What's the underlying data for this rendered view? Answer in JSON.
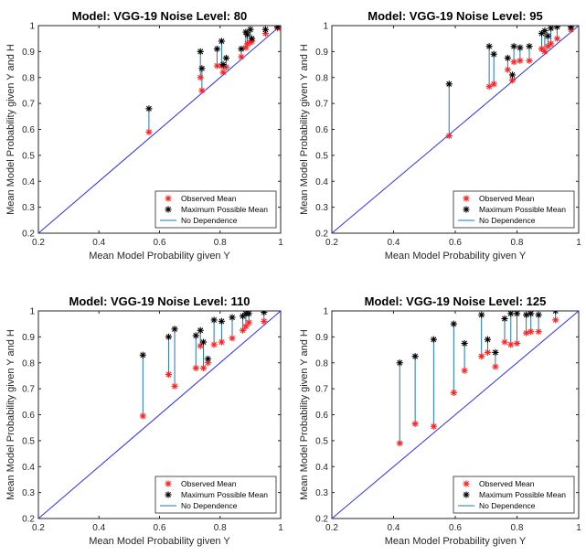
{
  "chart_data": [
    {
      "type": "scatter",
      "title": "Model: VGG-19   Noise Level: 80",
      "xlabel": "Mean Model Probability given Y",
      "ylabel": "Mean Model Probability given Y and H",
      "xlim": [
        0.2,
        1
      ],
      "ylim": [
        0.2,
        1
      ],
      "xticks": [
        "0.2",
        "0.4",
        "0.6",
        "0.8",
        "1"
      ],
      "yticks": [
        "0.2",
        "0.3",
        "0.4",
        "0.5",
        "0.6",
        "0.7",
        "0.8",
        "0.9",
        "1"
      ],
      "legend": {
        "position": "bottom-right",
        "entries": [
          "Observed Mean",
          "Maximum Possible Mean",
          "No Dependence"
        ]
      },
      "x": [
        0.565,
        0.735,
        0.74,
        0.79,
        0.805,
        0.81,
        0.82,
        0.87,
        0.885,
        0.89,
        0.9,
        0.905,
        0.95,
        0.99
      ],
      "series": [
        {
          "name": "Observed Mean",
          "values": [
            0.59,
            0.8,
            0.75,
            0.845,
            0.845,
            0.82,
            0.84,
            0.88,
            0.915,
            0.93,
            0.935,
            0.94,
            0.97,
            0.99
          ]
        },
        {
          "name": "Maximum Possible Mean",
          "values": [
            0.68,
            0.9,
            0.835,
            0.91,
            0.94,
            0.85,
            0.875,
            0.91,
            0.975,
            0.965,
            0.985,
            0.95,
            0.985,
            0.995
          ]
        }
      ]
    },
    {
      "type": "scatter",
      "title": "Model: VGG-19   Noise Level: 95",
      "xlabel": "Mean Model Probability given Y",
      "ylabel": "Mean Model Probability given Y and H",
      "xlim": [
        0.2,
        1
      ],
      "ylim": [
        0.2,
        1
      ],
      "xticks": [
        "0.2",
        "0.4",
        "0.6",
        "0.8",
        "1"
      ],
      "yticks": [
        "0.2",
        "0.3",
        "0.4",
        "0.5",
        "0.6",
        "0.7",
        "0.8",
        "0.9",
        "1"
      ],
      "legend": {
        "position": "bottom-right",
        "entries": [
          "Observed Mean",
          "Maximum Possible Mean",
          "No Dependence"
        ]
      },
      "x": [
        0.58,
        0.71,
        0.725,
        0.77,
        0.785,
        0.79,
        0.81,
        0.84,
        0.88,
        0.89,
        0.9,
        0.91,
        0.93,
        0.975
      ],
      "series": [
        {
          "name": "Observed Mean",
          "values": [
            0.575,
            0.765,
            0.775,
            0.83,
            0.79,
            0.86,
            0.865,
            0.865,
            0.91,
            0.9,
            0.92,
            0.93,
            0.95,
            0.985
          ]
        },
        {
          "name": "Maximum Possible Mean",
          "values": [
            0.775,
            0.92,
            0.89,
            0.875,
            0.81,
            0.92,
            0.915,
            0.92,
            0.97,
            0.98,
            0.96,
            0.99,
            0.995,
            0.995
          ]
        }
      ]
    },
    {
      "type": "scatter",
      "title": "Model: VGG-19   Noise Level: 110",
      "xlabel": "Mean Model Probability given Y",
      "ylabel": "Mean Model Probability given Y and H",
      "xlim": [
        0.2,
        1
      ],
      "ylim": [
        0.2,
        1
      ],
      "xticks": [
        "0.2",
        "0.4",
        "0.6",
        "0.8",
        "1"
      ],
      "yticks": [
        "0.2",
        "0.3",
        "0.4",
        "0.5",
        "0.6",
        "0.7",
        "0.8",
        "0.9",
        "1"
      ],
      "legend": {
        "position": "bottom-right",
        "entries": [
          "Observed Mean",
          "Maximum Possible Mean",
          "No Dependence"
        ]
      },
      "x": [
        0.545,
        0.63,
        0.65,
        0.72,
        0.735,
        0.745,
        0.76,
        0.78,
        0.805,
        0.84,
        0.875,
        0.885,
        0.895,
        0.945
      ],
      "series": [
        {
          "name": "Observed Mean",
          "values": [
            0.595,
            0.755,
            0.71,
            0.78,
            0.865,
            0.78,
            0.8,
            0.87,
            0.88,
            0.895,
            0.925,
            0.94,
            0.955,
            0.96
          ]
        },
        {
          "name": "Maximum Possible Mean",
          "values": [
            0.83,
            0.9,
            0.93,
            0.905,
            0.925,
            0.88,
            0.815,
            0.965,
            0.96,
            0.975,
            0.98,
            0.99,
            0.99,
            0.995
          ]
        }
      ]
    },
    {
      "type": "scatter",
      "title": "Model: VGG-19   Noise Level: 125",
      "xlabel": "Mean Model Probability given Y",
      "ylabel": "Mean Model Probability given Y and H",
      "xlim": [
        0.2,
        1
      ],
      "ylim": [
        0.2,
        1
      ],
      "xticks": [
        "0.2",
        "0.4",
        "0.6",
        "0.8",
        "1"
      ],
      "yticks": [
        "0.2",
        "0.3",
        "0.4",
        "0.5",
        "0.6",
        "0.7",
        "0.8",
        "0.9",
        "1"
      ],
      "legend": {
        "position": "bottom-right",
        "entries": [
          "Observed Mean",
          "Maximum Possible Mean",
          "No Dependence"
        ]
      },
      "x": [
        0.42,
        0.47,
        0.53,
        0.595,
        0.63,
        0.685,
        0.705,
        0.73,
        0.76,
        0.78,
        0.8,
        0.83,
        0.845,
        0.87,
        0.925
      ],
      "series": [
        {
          "name": "Observed Mean",
          "values": [
            0.49,
            0.565,
            0.555,
            0.685,
            0.77,
            0.825,
            0.84,
            0.785,
            0.88,
            0.87,
            0.875,
            0.915,
            0.92,
            0.92,
            0.965
          ]
        },
        {
          "name": "Maximum Possible Mean",
          "values": [
            0.8,
            0.825,
            0.89,
            0.95,
            0.875,
            0.985,
            0.89,
            0.84,
            0.97,
            0.99,
            0.99,
            0.985,
            0.99,
            0.985,
            1.0
          ]
        }
      ]
    }
  ]
}
